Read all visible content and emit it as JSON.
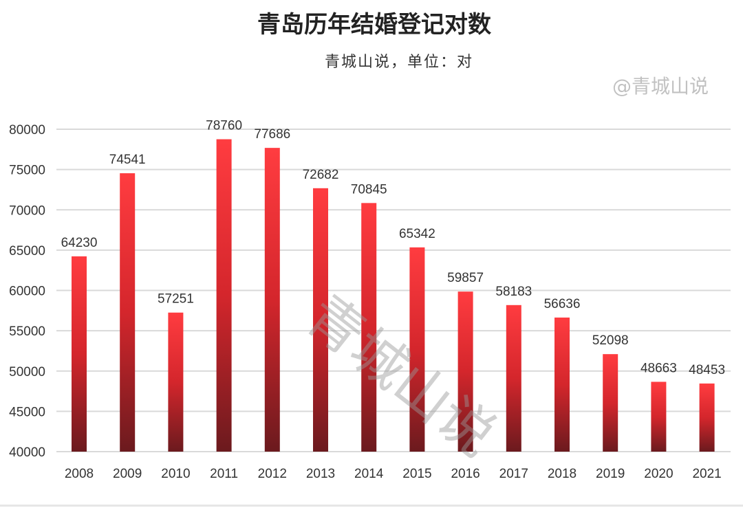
{
  "chart_data": {
    "type": "bar",
    "title": "青岛历年结婚登记对数",
    "subtitle": "青城山说，单位：对",
    "xlabel": "",
    "ylabel": "",
    "categories": [
      "2008",
      "2009",
      "2010",
      "2011",
      "2012",
      "2013",
      "2014",
      "2015",
      "2016",
      "2017",
      "2018",
      "2019",
      "2020",
      "2021"
    ],
    "values": [
      64230,
      74541,
      57251,
      78760,
      77686,
      72682,
      70845,
      65342,
      59857,
      58183,
      56636,
      52098,
      48663,
      48453
    ],
    "ylim": [
      40000,
      80000
    ],
    "yticks": [
      40000,
      45000,
      50000,
      55000,
      60000,
      65000,
      70000,
      75000,
      80000
    ],
    "grid": true,
    "bar_color_top": "#ff3c40",
    "bar_color_bottom": "#6b1a1e"
  },
  "watermark_center": "青城山说",
  "watermark_corner": "@青城山说"
}
